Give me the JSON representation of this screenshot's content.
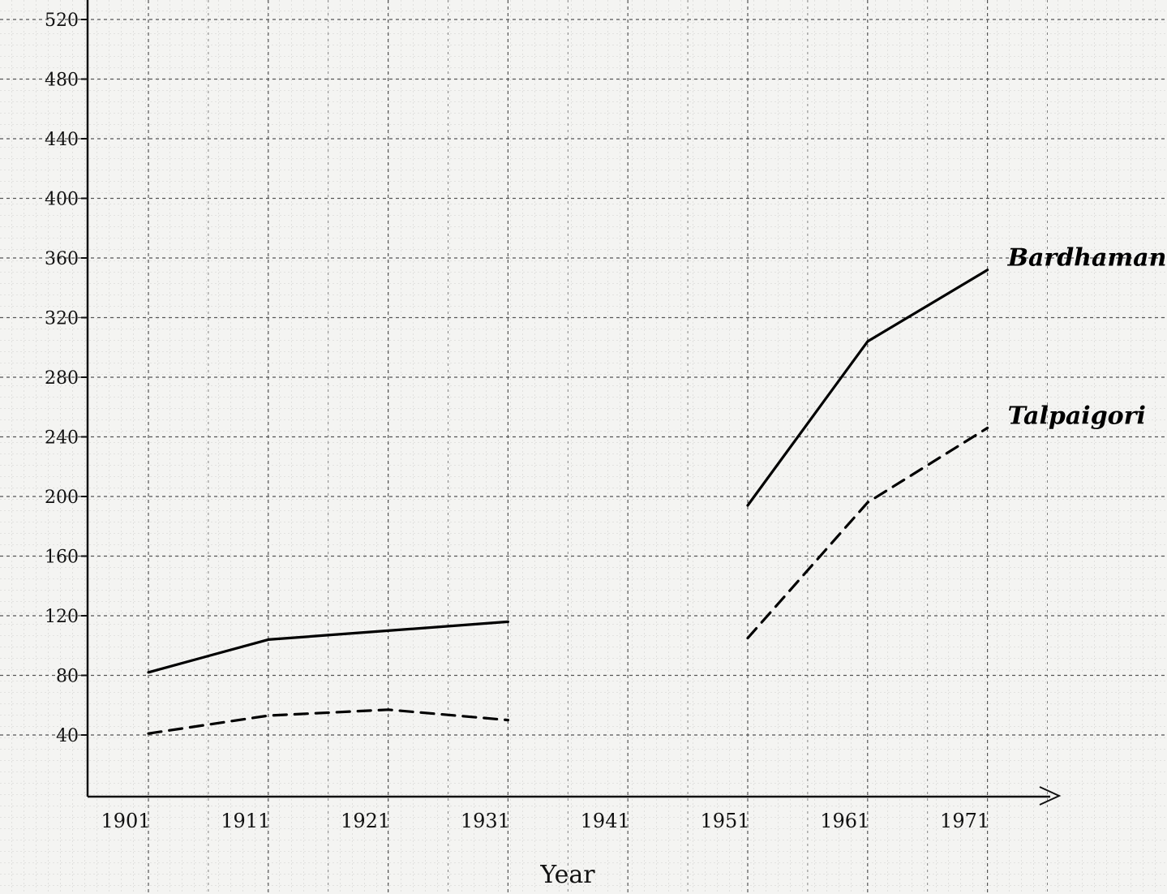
{
  "chart_data": {
    "type": "line",
    "title": "",
    "xlabel": "Year",
    "ylabel": "",
    "x_ticks": [
      "1901",
      "1911",
      "1921",
      "1931",
      "1941",
      "1951",
      "1961",
      "1971"
    ],
    "y_ticks": [
      40,
      80,
      120,
      160,
      200,
      240,
      280,
      320,
      360,
      400,
      440,
      480,
      520
    ],
    "ylim": [
      0,
      520
    ],
    "grid": true,
    "series": [
      {
        "name": "Bardhaman",
        "style": "solid",
        "color": "#000000",
        "segments": [
          [
            {
              "x": 1901,
              "y": 82
            },
            {
              "x": 1911,
              "y": 104
            },
            {
              "x": 1921,
              "y": 110
            },
            {
              "x": 1931,
              "y": 116
            }
          ],
          [
            {
              "x": 1951,
              "y": 194
            },
            {
              "x": 1961,
              "y": 304
            },
            {
              "x": 1971,
              "y": 352
            }
          ]
        ]
      },
      {
        "name": "Talpaigori",
        "style": "dashed",
        "color": "#000000",
        "segments": [
          [
            {
              "x": 1901,
              "y": 41
            },
            {
              "x": 1911,
              "y": 53
            },
            {
              "x": 1921,
              "y": 57
            },
            {
              "x": 1931,
              "y": 50
            }
          ],
          [
            {
              "x": 1951,
              "y": 105
            },
            {
              "x": 1961,
              "y": 196
            },
            {
              "x": 1971,
              "y": 246
            }
          ]
        ]
      }
    ]
  }
}
